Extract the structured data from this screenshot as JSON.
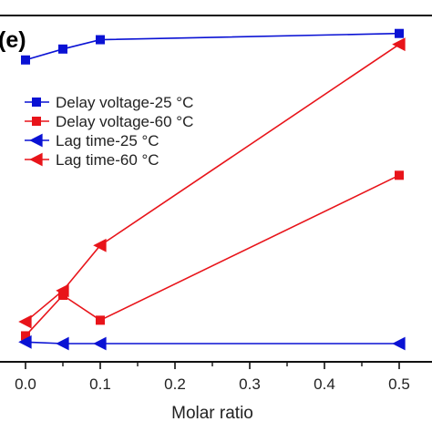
{
  "chart_data": {
    "type": "line",
    "panel_label": "(e)",
    "xlabel": "Molar ratio",
    "ylabel": "",
    "xlim": [
      -0.03,
      0.54
    ],
    "ylim": [
      0,
      100
    ],
    "x_ticks": [
      0.0,
      0.1,
      0.2,
      0.3,
      0.4,
      0.5
    ],
    "x_tick_labels": [
      "0.0",
      "0.1",
      "0.2",
      "0.3",
      "0.4",
      "0.5"
    ],
    "grid": false,
    "legend_position": "upper-left",
    "series": [
      {
        "name": "Delay voltage-25 °C",
        "color": "#0a12d4",
        "marker": "square",
        "x": [
          0.0,
          0.05,
          0.1,
          0.5
        ],
        "y": [
          91,
          94.5,
          97.5,
          99.5
        ]
      },
      {
        "name": "Delay voltage-60 °C",
        "color": "#e8141a",
        "marker": "square",
        "x": [
          0.0,
          0.05,
          0.1,
          0.5
        ],
        "y": [
          2.5,
          15.5,
          7.5,
          54
        ]
      },
      {
        "name": "Lag time-25 °C",
        "color": "#0a12d4",
        "marker": "triangle-left",
        "x": [
          0.0,
          0.05,
          0.1,
          0.5
        ],
        "y": [
          0.5,
          0,
          0,
          0
        ]
      },
      {
        "name": "Lag time-60 °C",
        "color": "#e8141a",
        "marker": "triangle-left",
        "x": [
          0.0,
          0.05,
          0.1,
          0.5
        ],
        "y": [
          7,
          17,
          31.5,
          96
        ]
      }
    ]
  }
}
